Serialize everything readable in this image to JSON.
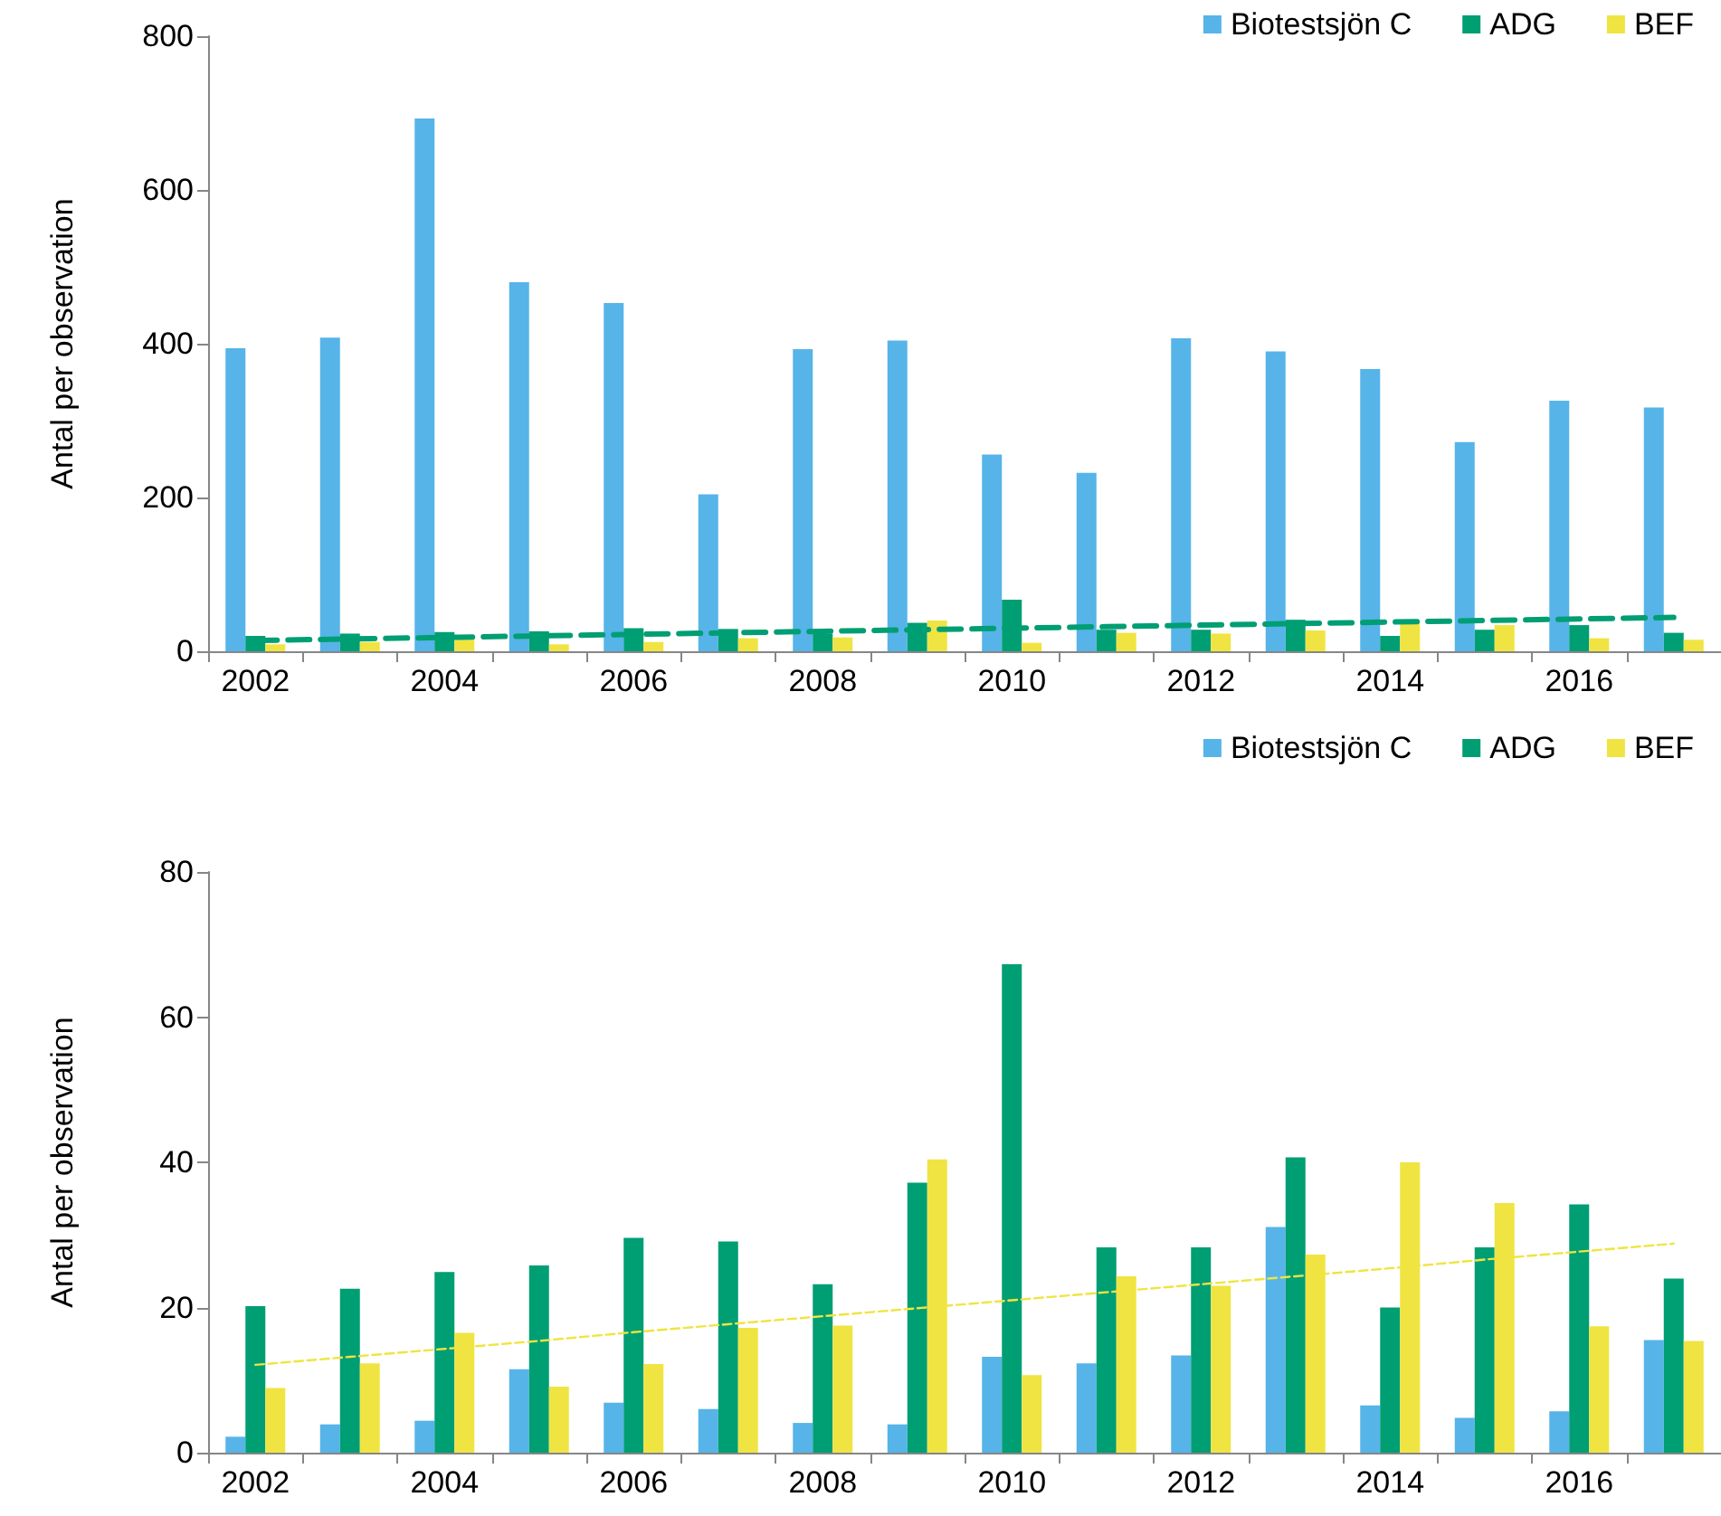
{
  "chart_data": [
    {
      "type": "bar",
      "ylabel": "Antal per observation",
      "categories": [
        "2002",
        null,
        "2004",
        null,
        "2006",
        null,
        "2008",
        null,
        "2010",
        null,
        "2012",
        null,
        "2014",
        null,
        "2016",
        null
      ],
      "series": [
        {
          "name": "Biotestsjön C",
          "color": "#56b4e9",
          "values": [
            394,
            408,
            693,
            480,
            453,
            204,
            393,
            404,
            256,
            232,
            407,
            390,
            367,
            272,
            326,
            317
          ]
        },
        {
          "name": "ADG",
          "color": "#009e73",
          "values": [
            20,
            23,
            25,
            26,
            30,
            29,
            23,
            37,
            67,
            28,
            28,
            41,
            20,
            28,
            34,
            24
          ]
        },
        {
          "name": "BEF",
          "color": "#f0e442",
          "values": [
            9,
            12,
            17,
            9,
            12,
            17,
            18,
            40,
            11,
            24,
            23,
            27,
            40,
            34,
            17,
            15
          ]
        },
        {
          "type": "line",
          "color": "#009e73",
          "line_style": "dashed",
          "values": [
            14,
            16,
            18,
            20,
            22,
            24,
            26,
            28,
            30,
            32,
            34,
            36,
            38,
            40,
            42,
            44
          ]
        }
      ],
      "ylim": [
        0,
        800
      ],
      "yticks": [
        0,
        200,
        400,
        600,
        800
      ],
      "grid": false,
      "legend": "top right",
      "marker": "none"
    },
    {
      "type": "bar",
      "ylabel": "Antal per observation",
      "categories": [
        "2002",
        null,
        "2004",
        null,
        "2006",
        null,
        "2008",
        null,
        "2010",
        null,
        "2012",
        null,
        "2014",
        null,
        "2016",
        null
      ],
      "series": [
        {
          "name": "Biotestsjön C",
          "color": "#56b4e9",
          "values": [
            2.2,
            3.9,
            4.4,
            11.5,
            6.9,
            6.0,
            4.1,
            3.9,
            13.2,
            12.3,
            13.4,
            31.1,
            6.5,
            4.8,
            5.7,
            15.5
          ]
        },
        {
          "name": "ADG",
          "color": "#009e73",
          "values": [
            20.2,
            22.6,
            24.9,
            25.8,
            29.6,
            29.1,
            23.2,
            37.2,
            67.3,
            28.3,
            28.3,
            40.7,
            20.0,
            28.3,
            34.2,
            24.0
          ]
        },
        {
          "name": "BEF",
          "color": "#f0e442",
          "values": [
            8.9,
            12.3,
            16.5,
            9.1,
            12.2,
            17.2,
            17.5,
            40.4,
            10.7,
            24.3,
            23.0,
            27.3,
            40.0,
            34.4,
            17.4,
            15.4
          ]
        },
        {
          "type": "line",
          "color": "#f0e442",
          "line_style": "dashed",
          "values": [
            12.1,
            13.2,
            14.3,
            15.4,
            16.6,
            17.7,
            18.8,
            19.9,
            21.0,
            22.1,
            23.2,
            24.3,
            25.4,
            26.6,
            27.7,
            28.8
          ]
        }
      ],
      "ylim": [
        0,
        80
      ],
      "yticks": [
        0,
        20,
        40,
        60,
        80
      ],
      "grid": false,
      "legend": "top right",
      "marker": "none"
    }
  ]
}
